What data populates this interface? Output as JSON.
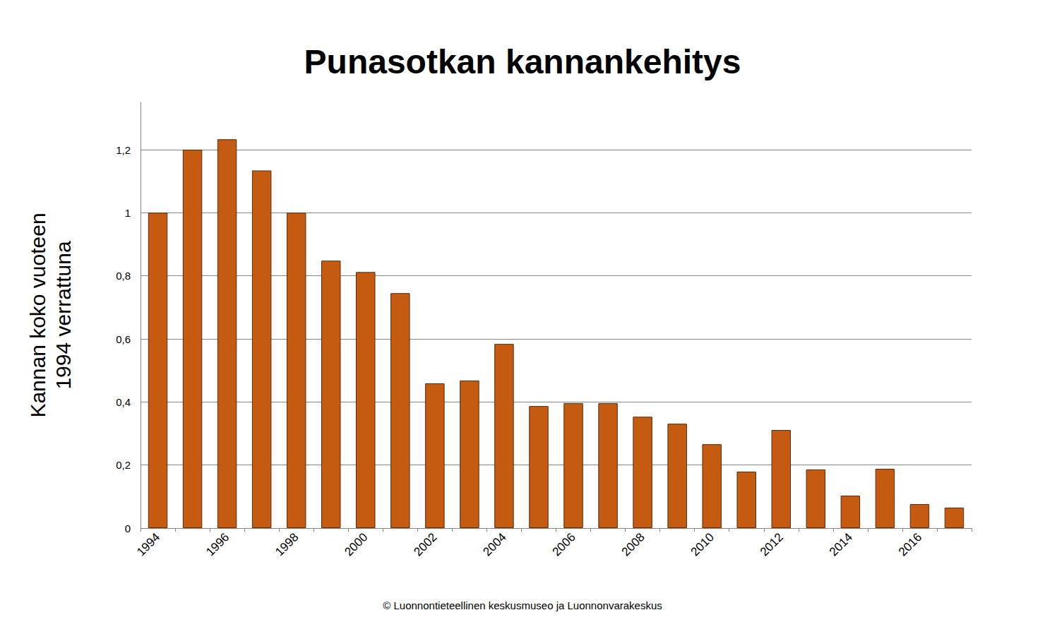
{
  "chart_data": {
    "type": "bar",
    "title": "Punasotkan kannankehitys",
    "ylabel": "Kannan koko vuoteen\n1994 verrattuna",
    "annotation": "© Luonnontieteellinen keskusmuseo ja Luonnonvarakeskus",
    "categories": [
      "1994",
      null,
      "1996",
      null,
      "1998",
      null,
      "2000",
      null,
      "2002",
      null,
      "2004",
      null,
      "2006",
      null,
      "2008",
      null,
      "2010",
      null,
      "2012",
      null,
      "2014",
      null,
      "2016",
      null
    ],
    "values": [
      1.0,
      1.2,
      1.233,
      1.134,
      1.0,
      0.848,
      0.812,
      0.745,
      0.459,
      0.468,
      0.584,
      0.387,
      0.396,
      0.396,
      0.353,
      0.331,
      0.266,
      0.179,
      0.311,
      0.186,
      0.103,
      0.188,
      0.076,
      0.065
    ],
    "color": "#c55a11",
    "ylim": [
      0,
      1.35
    ],
    "yticks": [
      0,
      {
        "value": 0.2,
        "label": "0,2"
      },
      {
        "value": 0.4,
        "label": "0,4"
      },
      {
        "value": 0.6,
        "label": "0,6"
      },
      {
        "value": 0.8,
        "label": "0,8"
      },
      1,
      {
        "value": 1.2,
        "label": "1,2"
      }
    ],
    "grid": true
  }
}
